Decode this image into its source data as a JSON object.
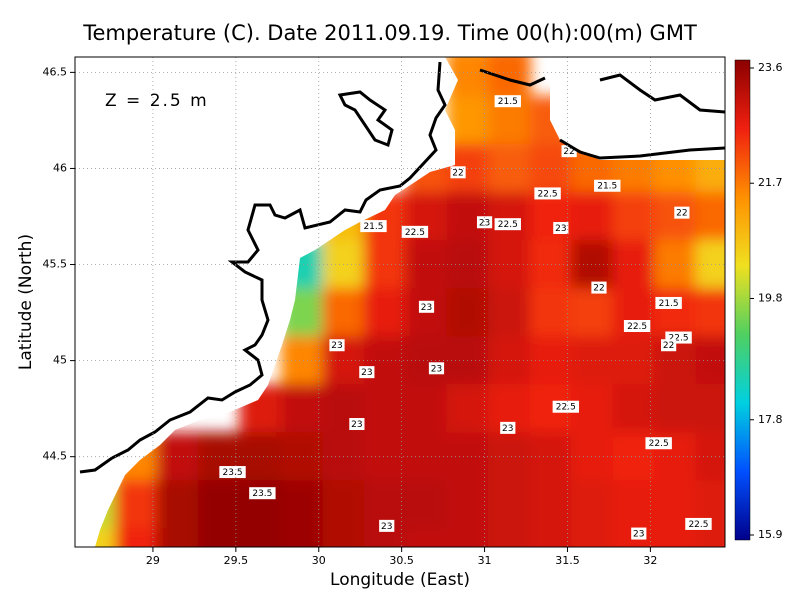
{
  "chart_data": {
    "type": "heatmap",
    "title": "Temperature (C). Date 2011.09.19. Time 00(h):00(m) GMT",
    "annotation": "Z = 2.5 m",
    "x_label": "Longitude (East)",
    "y_label": "Latitude (North)",
    "xlim": [
      28.53,
      32.45
    ],
    "ylim": [
      44.03,
      46.58
    ],
    "xticks": [
      29,
      29.5,
      30,
      30.5,
      31,
      31.5,
      32
    ],
    "yticks": [
      44.5,
      45,
      45.5,
      46,
      46.5
    ],
    "grid": true,
    "lon": [
      28.65,
      28.9,
      29.15,
      29.4,
      29.65,
      29.9,
      30.15,
      30.4,
      30.65,
      30.9,
      31.15,
      31.4,
      31.65,
      31.9,
      32.15,
      32.4
    ],
    "lat": [
      46.5,
      46.25,
      46.0,
      45.75,
      45.5,
      45.25,
      45.0,
      44.75,
      44.5,
      44.25,
      44.0
    ],
    "temperature": [
      [
        null,
        null,
        null,
        null,
        null,
        null,
        null,
        null,
        null,
        21.5,
        21.8,
        null,
        null,
        null,
        null,
        null
      ],
      [
        null,
        null,
        null,
        null,
        null,
        null,
        null,
        null,
        null,
        21.3,
        21.6,
        21.9,
        null,
        null,
        null,
        null
      ],
      [
        null,
        null,
        null,
        null,
        null,
        null,
        null,
        null,
        22.0,
        22.2,
        21.9,
        22.1,
        21.8,
        21.6,
        21.4,
        21.0
      ],
      [
        null,
        null,
        null,
        null,
        null,
        null,
        20.8,
        22.3,
        22.8,
        23.0,
        22.8,
        22.5,
        22.6,
        22.2,
        22.0,
        21.8
      ],
      [
        null,
        null,
        null,
        null,
        null,
        18.5,
        20.5,
        22.3,
        23.0,
        23.1,
        22.8,
        22.4,
        23.2,
        22.6,
        21.6,
        20.5
      ],
      [
        null,
        null,
        null,
        null,
        null,
        19.5,
        21.8,
        22.6,
        23.0,
        23.2,
        22.9,
        22.3,
        22.2,
        22.6,
        22.4,
        22.3
      ],
      [
        null,
        null,
        null,
        null,
        null,
        21.5,
        22.8,
        23.0,
        23.1,
        23.1,
        22.8,
        22.6,
        22.7,
        22.7,
        22.9,
        23.0
      ],
      [
        null,
        null,
        null,
        null,
        22.7,
        23.0,
        23.1,
        23.0,
        23.0,
        22.8,
        22.6,
        22.5,
        22.6,
        22.8,
        22.9,
        22.9
      ],
      [
        null,
        21.5,
        23.0,
        23.3,
        23.3,
        23.2,
        23.1,
        23.0,
        23.0,
        23.0,
        22.9,
        22.8,
        22.6,
        22.5,
        22.6,
        22.8
      ],
      [
        20.0,
        22.3,
        23.3,
        23.5,
        23.5,
        23.4,
        23.2,
        23.1,
        23.1,
        23.0,
        22.9,
        22.8,
        22.7,
        22.6,
        22.6,
        22.7
      ],
      [
        20.5,
        22.5,
        23.3,
        23.5,
        23.5,
        23.4,
        23.2,
        23.1,
        23.0,
        23.0,
        22.9,
        22.8,
        22.7,
        22.6,
        22.6,
        22.7
      ]
    ],
    "clim": [
      15.9,
      23.6
    ],
    "colorbar_ticks": [
      23.6,
      21.7,
      19.8,
      17.8,
      15.9
    ],
    "colormap": [
      "#00008b",
      "#0050ff",
      "#00d0e0",
      "#50d060",
      "#f0e020",
      "#ff9000",
      "#f02010",
      "#8b0000"
    ],
    "contour_labels": [
      {
        "lon": 31.14,
        "lat": 46.35,
        "value": 21.5
      },
      {
        "lon": 31.51,
        "lat": 46.09,
        "value": 22
      },
      {
        "lon": 30.84,
        "lat": 45.98,
        "value": 22
      },
      {
        "lon": 31.74,
        "lat": 45.91,
        "value": 21.5
      },
      {
        "lon": 31.38,
        "lat": 45.87,
        "value": 22.5
      },
      {
        "lon": 32.19,
        "lat": 45.77,
        "value": 22
      },
      {
        "lon": 31.0,
        "lat": 45.72,
        "value": 23
      },
      {
        "lon": 31.14,
        "lat": 45.71,
        "value": 22.5
      },
      {
        "lon": 30.33,
        "lat": 45.7,
        "value": 21.5
      },
      {
        "lon": 30.58,
        "lat": 45.67,
        "value": 22.5
      },
      {
        "lon": 31.46,
        "lat": 45.69,
        "value": 23
      },
      {
        "lon": 31.69,
        "lat": 45.38,
        "value": 22
      },
      {
        "lon": 30.65,
        "lat": 45.28,
        "value": 23
      },
      {
        "lon": 32.11,
        "lat": 45.3,
        "value": 21.5
      },
      {
        "lon": 31.92,
        "lat": 45.18,
        "value": 22.5
      },
      {
        "lon": 32.17,
        "lat": 45.12,
        "value": 22.5
      },
      {
        "lon": 32.11,
        "lat": 45.08,
        "value": 22
      },
      {
        "lon": 30.11,
        "lat": 45.08,
        "value": 23
      },
      {
        "lon": 30.29,
        "lat": 44.94,
        "value": 23
      },
      {
        "lon": 30.71,
        "lat": 44.96,
        "value": 23
      },
      {
        "lon": 31.49,
        "lat": 44.76,
        "value": 22.5
      },
      {
        "lon": 30.23,
        "lat": 44.67,
        "value": 23
      },
      {
        "lon": 31.14,
        "lat": 44.65,
        "value": 23
      },
      {
        "lon": 32.05,
        "lat": 44.57,
        "value": 22.5
      },
      {
        "lon": 29.48,
        "lat": 44.42,
        "value": 23.5
      },
      {
        "lon": 29.66,
        "lat": 44.31,
        "value": 23.5
      },
      {
        "lon": 30.41,
        "lat": 44.14,
        "value": 23
      },
      {
        "lon": 31.93,
        "lat": 44.1,
        "value": 23
      },
      {
        "lon": 32.29,
        "lat": 44.15,
        "value": 22.5
      }
    ]
  }
}
